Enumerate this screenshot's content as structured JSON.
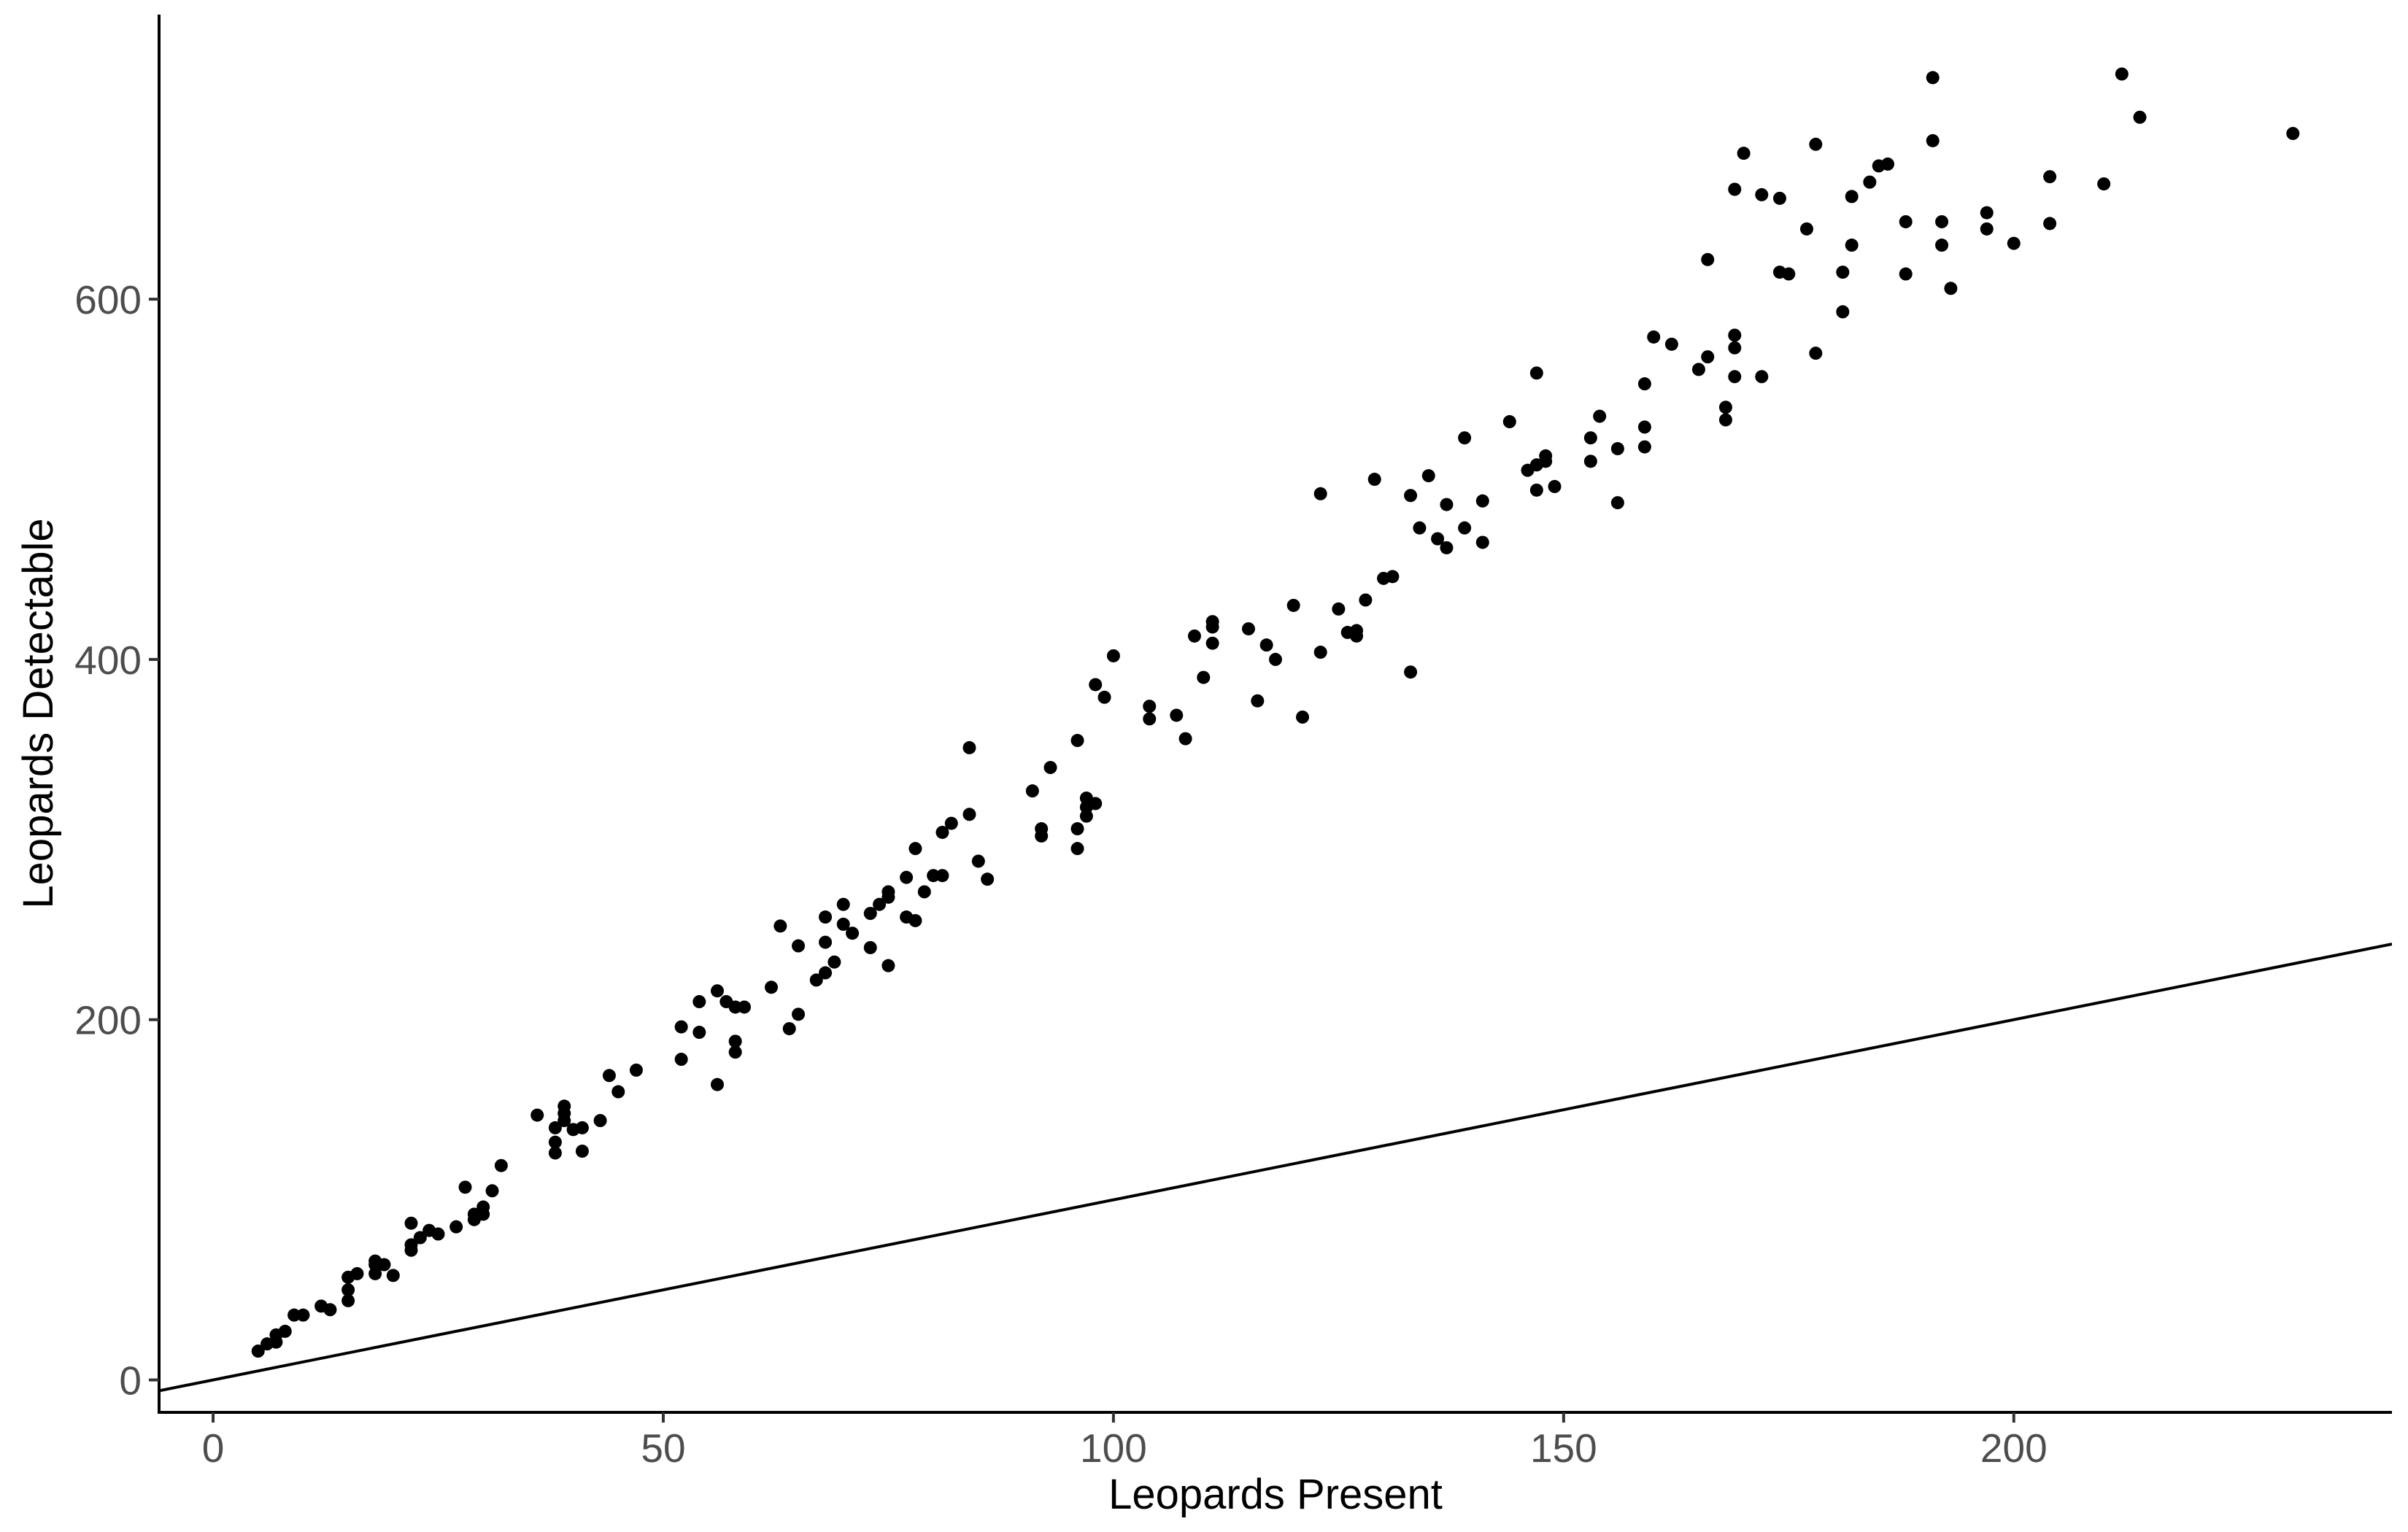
{
  "chart_data": {
    "type": "scatter",
    "title": "",
    "xlabel": "Leopards Present",
    "ylabel": "Leopards Detectable",
    "xlim": [
      -6,
      242
    ],
    "ylim": [
      -18,
      758
    ],
    "x_ticks": [
      0,
      50,
      100,
      150,
      200
    ],
    "y_ticks": [
      0,
      200,
      400,
      600
    ],
    "grid": false,
    "legend": "none",
    "reference_line": {
      "intercept": 0,
      "slope": 1,
      "color": "#000000"
    },
    "point_color": "#000000",
    "series": [
      {
        "points": [
          [
            5,
            16
          ],
          [
            6,
            20
          ],
          [
            7,
            21
          ],
          [
            7,
            25
          ],
          [
            8,
            27
          ],
          [
            9,
            36
          ],
          [
            10,
            36
          ],
          [
            12,
            41
          ],
          [
            13,
            39
          ],
          [
            15,
            44
          ],
          [
            15,
            50
          ],
          [
            15,
            57
          ],
          [
            16,
            59
          ],
          [
            18,
            59
          ],
          [
            18,
            64
          ],
          [
            18,
            66
          ],
          [
            19,
            64
          ],
          [
            20,
            58
          ],
          [
            22,
            72
          ],
          [
            22,
            75
          ],
          [
            22,
            87
          ],
          [
            23,
            79
          ],
          [
            24,
            83
          ],
          [
            25,
            81
          ],
          [
            27,
            85
          ],
          [
            28,
            107
          ],
          [
            29,
            89
          ],
          [
            29,
            92
          ],
          [
            30,
            92
          ],
          [
            30,
            96
          ],
          [
            31,
            105
          ],
          [
            32,
            119
          ],
          [
            36,
            147
          ],
          [
            38,
            126
          ],
          [
            38,
            132
          ],
          [
            38,
            140
          ],
          [
            39,
            144
          ],
          [
            39,
            148
          ],
          [
            39,
            152
          ],
          [
            40,
            139
          ],
          [
            41,
            127
          ],
          [
            41,
            140
          ],
          [
            43,
            144
          ],
          [
            44,
            169
          ],
          [
            45,
            160
          ],
          [
            47,
            172
          ],
          [
            52,
            178
          ],
          [
            52,
            196
          ],
          [
            54,
            193
          ],
          [
            54,
            210
          ],
          [
            56,
            164
          ],
          [
            56,
            216
          ],
          [
            57,
            210
          ],
          [
            58,
            182
          ],
          [
            58,
            188
          ],
          [
            58,
            207
          ],
          [
            59,
            207
          ],
          [
            62,
            218
          ],
          [
            63,
            252
          ],
          [
            64,
            195
          ],
          [
            65,
            203
          ],
          [
            65,
            241
          ],
          [
            67,
            222
          ],
          [
            68,
            226
          ],
          [
            68,
            243
          ],
          [
            68,
            257
          ],
          [
            69,
            232
          ],
          [
            70,
            253
          ],
          [
            70,
            264
          ],
          [
            71,
            248
          ],
          [
            73,
            240
          ],
          [
            73,
            259
          ],
          [
            74,
            264
          ],
          [
            75,
            230
          ],
          [
            75,
            268
          ],
          [
            75,
            271
          ],
          [
            77,
            257
          ],
          [
            77,
            279
          ],
          [
            78,
            255
          ],
          [
            78,
            295
          ],
          [
            79,
            271
          ],
          [
            80,
            280
          ],
          [
            81,
            280
          ],
          [
            81,
            304
          ],
          [
            82,
            309
          ],
          [
            84,
            314
          ],
          [
            84,
            351
          ],
          [
            85,
            288
          ],
          [
            86,
            278
          ],
          [
            91,
            327
          ],
          [
            92,
            302
          ],
          [
            92,
            306
          ],
          [
            93,
            340
          ],
          [
            96,
            295
          ],
          [
            96,
            306
          ],
          [
            96,
            355
          ],
          [
            97,
            313
          ],
          [
            97,
            318
          ],
          [
            97,
            323
          ],
          [
            98,
            320
          ],
          [
            98,
            386
          ],
          [
            99,
            379
          ],
          [
            100,
            402
          ],
          [
            104,
            367
          ],
          [
            104,
            374
          ],
          [
            107,
            369
          ],
          [
            108,
            356
          ],
          [
            109,
            413
          ],
          [
            110,
            390
          ],
          [
            111,
            409
          ],
          [
            111,
            418
          ],
          [
            111,
            421
          ],
          [
            115,
            417
          ],
          [
            116,
            377
          ],
          [
            117,
            408
          ],
          [
            118,
            400
          ],
          [
            120,
            430
          ],
          [
            121,
            368
          ],
          [
            123,
            404
          ],
          [
            123,
            492
          ],
          [
            125,
            428
          ],
          [
            126,
            415
          ],
          [
            127,
            413
          ],
          [
            127,
            416
          ],
          [
            128,
            433
          ],
          [
            129,
            500
          ],
          [
            130,
            445
          ],
          [
            131,
            446
          ],
          [
            133,
            393
          ],
          [
            133,
            491
          ],
          [
            134,
            473
          ],
          [
            135,
            502
          ],
          [
            136,
            467
          ],
          [
            137,
            462
          ],
          [
            137,
            486
          ],
          [
            139,
            473
          ],
          [
            139,
            523
          ],
          [
            141,
            465
          ],
          [
            141,
            488
          ],
          [
            144,
            532
          ],
          [
            146,
            505
          ],
          [
            147,
            494
          ],
          [
            147,
            508
          ],
          [
            147,
            559
          ],
          [
            148,
            510
          ],
          [
            148,
            513
          ],
          [
            149,
            496
          ],
          [
            153,
            510
          ],
          [
            153,
            523
          ],
          [
            154,
            535
          ],
          [
            156,
            517
          ],
          [
            156,
            487
          ],
          [
            159,
            518
          ],
          [
            159,
            529
          ],
          [
            159,
            553
          ],
          [
            160,
            579
          ],
          [
            162,
            575
          ],
          [
            165,
            561
          ],
          [
            166,
            568
          ],
          [
            166,
            622
          ],
          [
            168,
            533
          ],
          [
            168,
            540
          ],
          [
            169,
            557
          ],
          [
            169,
            573
          ],
          [
            169,
            580
          ],
          [
            170,
            681
          ],
          [
            169,
            661
          ],
          [
            172,
            557
          ],
          [
            172,
            658
          ],
          [
            174,
            656
          ],
          [
            174,
            615
          ],
          [
            175,
            614
          ],
          [
            177,
            639
          ],
          [
            178,
            570
          ],
          [
            178,
            686
          ],
          [
            181,
            593
          ],
          [
            181,
            615
          ],
          [
            182,
            630
          ],
          [
            182,
            657
          ],
          [
            184,
            665
          ],
          [
            185,
            674
          ],
          [
            186,
            675
          ],
          [
            188,
            614
          ],
          [
            188,
            643
          ],
          [
            191,
            723
          ],
          [
            191,
            688
          ],
          [
            192,
            630
          ],
          [
            192,
            643
          ],
          [
            193,
            606
          ],
          [
            197,
            639
          ],
          [
            197,
            648
          ],
          [
            200,
            631
          ],
          [
            204,
            642
          ],
          [
            204,
            668
          ],
          [
            210,
            664
          ],
          [
            212,
            725
          ],
          [
            214,
            701
          ],
          [
            231,
            692
          ]
        ]
      }
    ]
  }
}
